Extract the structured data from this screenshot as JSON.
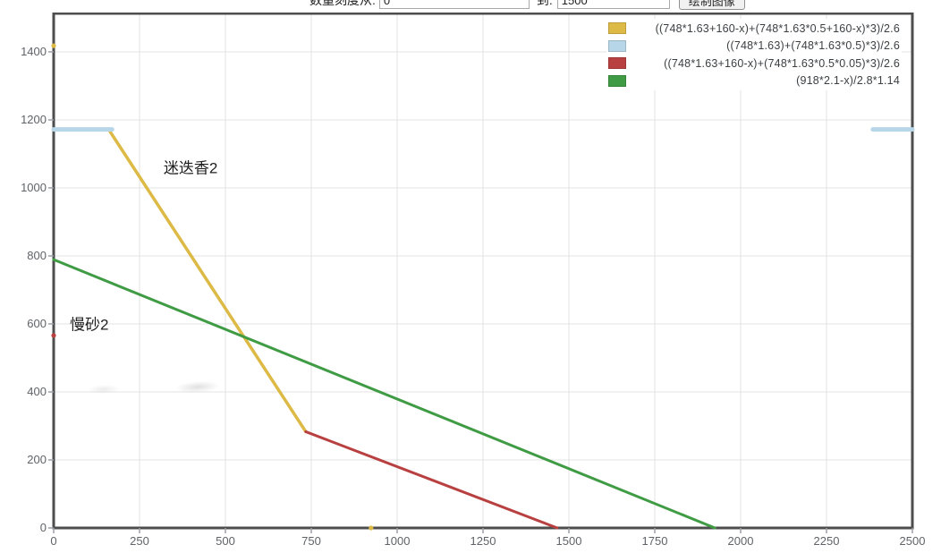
{
  "toolbar": {
    "label_from": "数量刻度从:",
    "input_from": "0",
    "label_to": "到:",
    "input_to": "1500",
    "button": "绘制图像"
  },
  "colors": {
    "axis": "#4d4d4d",
    "grid": "#e3e3e3",
    "tick": "#9aa0a6",
    "yellow": "#ddb945",
    "blue": "#b7d7e8",
    "red": "#b84040",
    "green": "#3f9b44"
  },
  "chart_data": {
    "type": "line",
    "title": "",
    "xlabel": "",
    "ylabel": "",
    "xlim": [
      0,
      2500
    ],
    "ylim": [
      0,
      1513
    ],
    "xticks": [
      0,
      250,
      500,
      750,
      1000,
      1250,
      1500,
      1750,
      2000,
      2250,
      2500
    ],
    "yticks": [
      0,
      200,
      400,
      600,
      800,
      1000,
      1200,
      1400
    ],
    "grid": true,
    "legend_position": "top-right",
    "series": [
      {
        "name": "((748*1.63+160-x)+(748*1.63*0.5+160-x)*3)/2.6",
        "color": "#ddb945",
        "line_width": 3.5,
        "segments": [
          [
            [
              160,
              1172
            ],
            [
              734,
              283
            ]
          ]
        ],
        "points": [
          [
            0,
            1418
          ],
          [
            924,
            0
          ]
        ]
      },
      {
        "name": "((748*1.63)+(748*1.63*0.5)*3)/2.6",
        "color": "#b7d7e8",
        "line_width": 5,
        "segments": [
          [
            [
              0,
              1172
            ],
            [
              170,
              1172
            ]
          ],
          [
            [
              2385,
              1172
            ],
            [
              2500,
              1172
            ]
          ]
        ],
        "points": []
      },
      {
        "name": "((748*1.63+160-x)+(748*1.63*0.5*0.05)*3)/2.6",
        "color": "#b84040",
        "line_width": 3,
        "segments": [
          [
            [
              734,
              283
            ],
            [
              1466,
              0
            ]
          ]
        ],
        "points": [
          [
            0,
            566
          ]
        ]
      },
      {
        "name": "(918*2.1-x)/2.8*1.14",
        "color": "#3f9b44",
        "line_width": 3,
        "segments": [
          [
            [
              0,
              789
            ],
            [
              1925,
              0
            ]
          ]
        ],
        "points": []
      }
    ],
    "annotations": [
      {
        "text": "迷迭香2",
        "x": 320,
        "y": 1063
      },
      {
        "text": "慢砂2",
        "x": 47,
        "y": 603
      }
    ]
  }
}
